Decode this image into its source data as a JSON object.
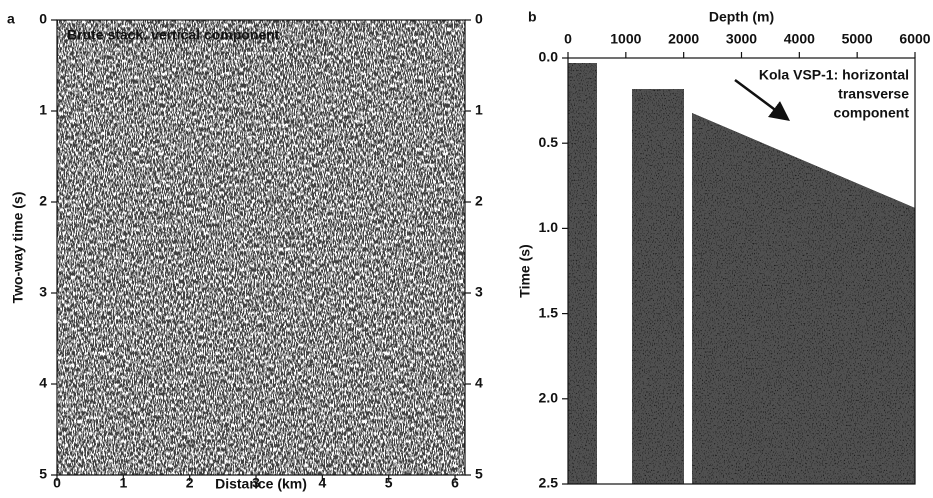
{
  "chart_data": [
    {
      "type": "seismic",
      "panel": "a",
      "title": "Brute stack, vertical component",
      "xlabel": "Distance (km)",
      "ylabel": "Two-way time (s)",
      "xlim": [
        0,
        6.15
      ],
      "xticks": [
        0,
        1,
        2,
        3,
        4,
        5,
        6
      ],
      "ylim": [
        0,
        5
      ],
      "yticks": [
        0,
        1,
        2,
        3,
        4,
        5
      ],
      "x_axis": "bottom",
      "right_ticks": true
    },
    {
      "type": "seismic",
      "panel": "b",
      "title": [
        "Kola VSP-1: horizontal",
        "transverse",
        "component"
      ],
      "xlabel": "Depth (m)",
      "ylabel": "Time (s)",
      "xlim": [
        0,
        6000
      ],
      "xticks": [
        0,
        1000,
        2000,
        3000,
        4000,
        5000,
        6000
      ],
      "ylim": [
        0,
        2.5
      ],
      "yticks": [
        {
          "value": 0,
          "label": "0.0"
        },
        0.5,
        {
          "value": 1,
          "label": "1.0"
        },
        1.5,
        {
          "value": 2,
          "label": "2.0"
        },
        2.5
      ],
      "x_axis": "top",
      "right_ticks": false
    }
  ]
}
